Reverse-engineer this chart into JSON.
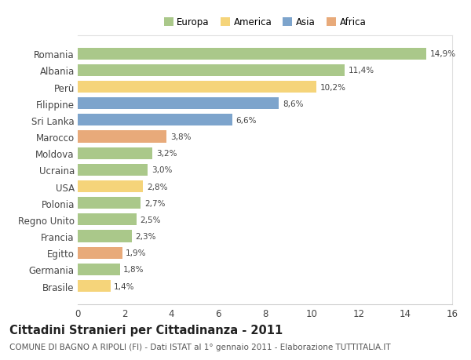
{
  "countries": [
    "Romania",
    "Albania",
    "Perù",
    "Filippine",
    "Sri Lanka",
    "Marocco",
    "Moldova",
    "Ucraina",
    "USA",
    "Polonia",
    "Regno Unito",
    "Francia",
    "Egitto",
    "Germania",
    "Brasile"
  ],
  "values": [
    14.9,
    11.4,
    10.2,
    8.6,
    6.6,
    3.8,
    3.2,
    3.0,
    2.8,
    2.7,
    2.5,
    2.3,
    1.9,
    1.8,
    1.4
  ],
  "labels": [
    "14,9%",
    "11,4%",
    "10,2%",
    "8,6%",
    "6,6%",
    "3,8%",
    "3,2%",
    "3,0%",
    "2,8%",
    "2,7%",
    "2,5%",
    "2,3%",
    "1,9%",
    "1,8%",
    "1,4%"
  ],
  "continents": [
    "Europa",
    "Europa",
    "America",
    "Asia",
    "Asia",
    "Africa",
    "Europa",
    "Europa",
    "America",
    "Europa",
    "Europa",
    "Europa",
    "Africa",
    "Europa",
    "America"
  ],
  "colors": {
    "Europa": "#aac88a",
    "America": "#f5d47a",
    "Asia": "#7da4cc",
    "Africa": "#e8aa7a"
  },
  "legend_order": [
    "Europa",
    "America",
    "Asia",
    "Africa"
  ],
  "xlim": [
    0,
    16
  ],
  "xticks": [
    0,
    2,
    4,
    6,
    8,
    10,
    12,
    14,
    16
  ],
  "title": "Cittadini Stranieri per Cittadinanza - 2011",
  "subtitle": "COMUNE DI BAGNO A RIPOLI (FI) - Dati ISTAT al 1° gennaio 2011 - Elaborazione TUTTITALIA.IT",
  "bg_color": "#ffffff",
  "plot_bg_color": "#ffffff",
  "bar_height": 0.72,
  "title_fontsize": 10.5,
  "subtitle_fontsize": 7.5,
  "label_fontsize": 7.5,
  "ytick_fontsize": 8.5,
  "xtick_fontsize": 8.5,
  "legend_fontsize": 8.5
}
